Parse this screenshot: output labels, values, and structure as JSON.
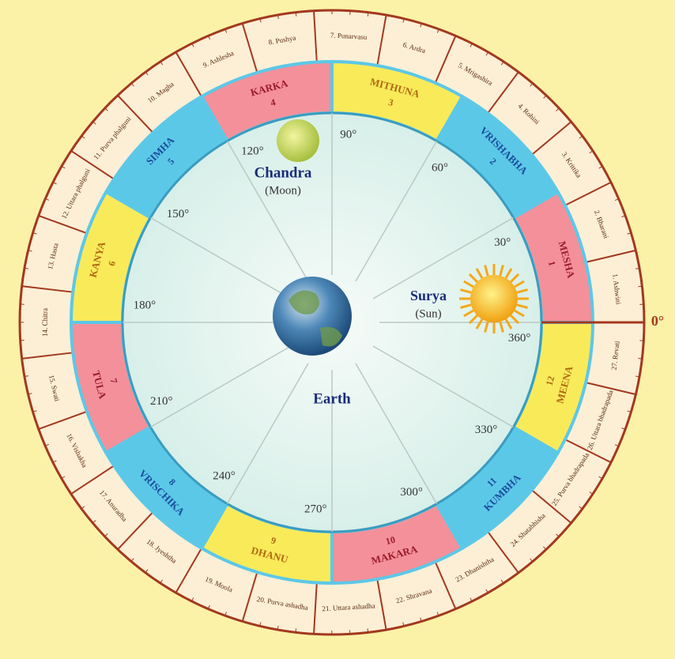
{
  "rashis": [
    {
      "name": "MESHA",
      "number": 1
    },
    {
      "name": "VRISHABHA",
      "number": 2
    },
    {
      "name": "MITHUNA",
      "number": 3
    },
    {
      "name": "KARKA",
      "number": 4
    },
    {
      "name": "SIMHA",
      "number": 5
    },
    {
      "name": "KANYA",
      "number": 6
    },
    {
      "name": "TULA",
      "number": 7
    },
    {
      "name": "VRISCHIKA",
      "number": 8
    },
    {
      "name": "DHANU",
      "number": 9
    },
    {
      "name": "MAKARA",
      "number": 10
    },
    {
      "name": "KUMBHA",
      "number": 11
    },
    {
      "name": "MEENA",
      "number": 12
    }
  ],
  "nakshatras": [
    "1. Ashwini",
    "2. Bharani",
    "3. Krittika",
    "4. Rohini",
    "5. Mrigashira",
    "6. Ardra",
    "7. Punarvasu",
    "8. Pushya",
    "9. Ashlesha",
    "10. Magha",
    "11. Purva phalguni",
    "12. Uttara phalguni",
    "13. Hasta",
    "14. Chitra",
    "15. Swati",
    "16. Vishakha",
    "17. Anuradha",
    "18. Jyeshtha",
    "19. Moola",
    "20. Purva ashadha",
    "21. Uttara ashadha",
    "22. Shravana",
    "23. Dhanishtha",
    "24. Shatabhisha",
    "25. Purva bhadrapada",
    "26. Uttara bhadrapada",
    "27. Revati"
  ],
  "degree_labels": [
    "30°",
    "60°",
    "90°",
    "120°",
    "150°",
    "180°",
    "210°",
    "240°",
    "270°",
    "300°",
    "330°",
    "360°"
  ],
  "zero_label": "0°",
  "bodies": {
    "sun": {
      "name": "Surya",
      "note": "(Sun)"
    },
    "moon": {
      "name": "Chandra",
      "note": "(Moon)"
    },
    "earth": {
      "name": "Earth"
    }
  }
}
